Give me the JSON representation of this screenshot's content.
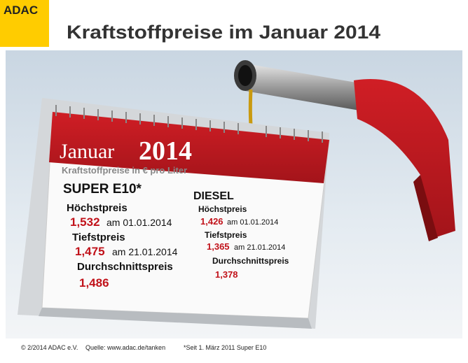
{
  "header": {
    "logo": "ADAC",
    "title": "Kraftstoffpreise im Januar 2014"
  },
  "calendar": {
    "month": "Januar",
    "year": "2014",
    "subtitle": "Kraftstoffpreise in € pro Liter",
    "super": {
      "name": "SUPER E10*",
      "max_label": "Höchstpreis",
      "max_price": "1,532",
      "max_date": "am 01.01.2014",
      "min_label": "Tiefstpreis",
      "min_price": "1,475",
      "min_date": "am 21.01.2014",
      "avg_label": "Durchschnittspreis",
      "avg_price": "1,486"
    },
    "diesel": {
      "name": "DIESEL",
      "max_label": "Höchstpreis",
      "max_price": "1,426",
      "max_date": "am 01.01.2014",
      "min_label": "Tiefstpreis",
      "min_price": "1,365",
      "min_date": "am 21.01.2014",
      "avg_label": "Durchschnittspreis",
      "avg_price": "1,378"
    }
  },
  "footer": {
    "copyright": "© 2/2014 ADAC e.V.",
    "source": "Quelle: www.adac.de/tanken",
    "note": "*Seit 1. März 2011 Super E10"
  }
}
